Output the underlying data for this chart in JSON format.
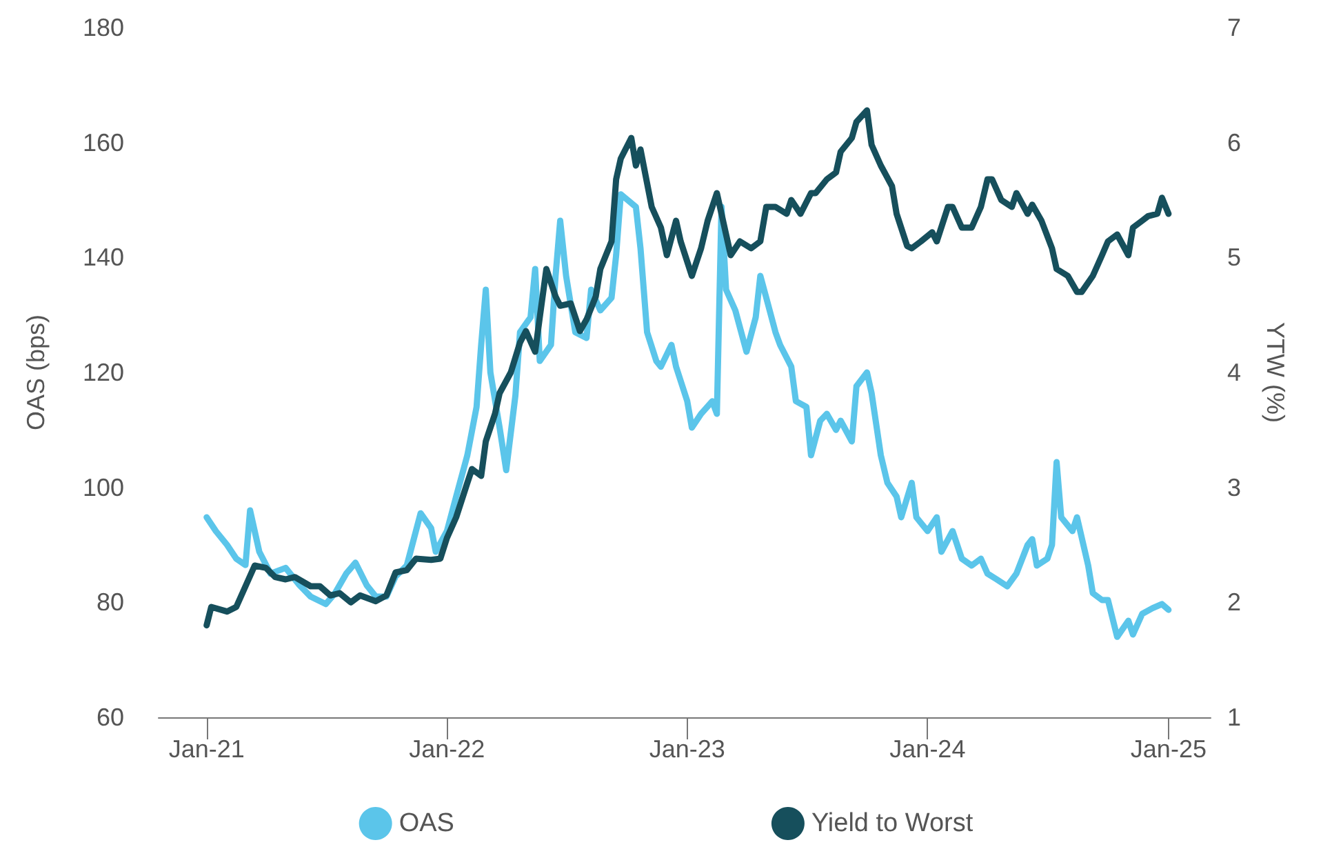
{
  "chart_data": {
    "type": "line",
    "ylabel": "OAS (bps)",
    "y2label": "YTW (%)",
    "xlim": [
      "2020-10-20",
      "2025-03-06"
    ],
    "xticks": [
      {
        "value": "2021-01-01",
        "label": "Jan-21"
      },
      {
        "value": "2022-01-01",
        "label": "Jan-22"
      },
      {
        "value": "2023-01-01",
        "label": "Jan-23"
      },
      {
        "value": "2024-01-01",
        "label": "Jan-24"
      },
      {
        "value": "2025-01-01",
        "label": "Jan-25"
      }
    ],
    "ylim": [
      60,
      180
    ],
    "yticks": [
      60,
      80,
      100,
      120,
      140,
      160,
      180
    ],
    "y2lim": [
      1,
      7
    ],
    "y2ticks": [
      1,
      2,
      3,
      4,
      5,
      6,
      7
    ],
    "grid": false,
    "legend": "bottom",
    "marker": "none",
    "line_style": "solid",
    "series": [
      {
        "name": "OAS",
        "color": "#5bc5ea",
        "x": [
          "2021-01-01",
          "2021-01-15",
          "2021-02-01",
          "2021-02-15",
          "2021-03-01",
          "2021-03-08",
          "2021-03-22",
          "2021-04-08",
          "2021-05-01",
          "2021-05-22",
          "2021-06-08",
          "2021-07-01",
          "2021-07-15",
          "2021-08-01",
          "2021-08-15",
          "2021-09-01",
          "2021-09-15",
          "2021-10-01",
          "2021-10-15",
          "2021-11-01",
          "2021-11-22",
          "2021-12-08",
          "2021-12-15",
          "2022-01-01",
          "2022-01-15",
          "2022-02-01",
          "2022-02-15",
          "2022-02-22",
          "2022-03-01",
          "2022-03-08",
          "2022-03-22",
          "2022-04-01",
          "2022-04-15",
          "2022-04-22",
          "2022-05-08",
          "2022-05-15",
          "2022-05-22",
          "2022-06-08",
          "2022-06-15",
          "2022-06-22",
          "2022-07-01",
          "2022-07-15",
          "2022-08-01",
          "2022-08-08",
          "2022-08-22",
          "2022-09-08",
          "2022-09-15",
          "2022-09-22",
          "2022-10-15",
          "2022-10-22",
          "2022-11-01",
          "2022-11-15",
          "2022-11-22",
          "2022-12-08",
          "2022-12-15",
          "2023-01-01",
          "2023-01-08",
          "2023-01-22",
          "2023-02-08",
          "2023-02-15",
          "2023-02-22",
          "2023-03-01",
          "2023-03-15",
          "2023-04-01",
          "2023-04-15",
          "2023-04-22",
          "2023-05-01",
          "2023-05-15",
          "2023-05-22",
          "2023-06-08",
          "2023-06-15",
          "2023-07-01",
          "2023-07-08",
          "2023-07-22",
          "2023-08-01",
          "2023-08-15",
          "2023-08-22",
          "2023-09-08",
          "2023-09-15",
          "2023-10-01",
          "2023-10-08",
          "2023-10-22",
          "2023-11-01",
          "2023-11-15",
          "2023-11-22",
          "2023-12-08",
          "2023-12-15",
          "2024-01-01",
          "2024-01-15",
          "2024-01-22",
          "2024-02-08",
          "2024-02-22",
          "2024-03-08",
          "2024-03-22",
          "2024-04-01",
          "2024-04-15",
          "2024-05-01",
          "2024-05-15",
          "2024-06-01",
          "2024-06-08",
          "2024-06-15",
          "2024-07-01",
          "2024-07-08",
          "2024-07-15",
          "2024-07-22",
          "2024-08-08",
          "2024-08-15",
          "2024-09-01",
          "2024-09-08",
          "2024-09-22",
          "2024-10-01",
          "2024-10-15",
          "2024-11-01",
          "2024-11-08",
          "2024-11-22",
          "2024-12-08",
          "2024-12-22",
          "2025-01-01"
        ],
        "values": [
          94.8,
          92.4,
          90,
          87.6,
          86.5,
          96,
          88.8,
          85,
          86,
          83,
          81,
          79.7,
          81.6,
          85,
          86.9,
          83,
          81,
          81,
          84.5,
          86.4,
          95.5,
          92.9,
          88.8,
          92.4,
          98.4,
          105.6,
          114,
          124.8,
          134.4,
          120,
          110.4,
          103,
          116,
          127,
          129.6,
          138,
          122,
          124.8,
          136.8,
          146.4,
          136.8,
          127,
          126,
          134.4,
          130.8,
          133,
          140.4,
          151,
          148.8,
          141.6,
          127,
          122,
          121,
          124.8,
          121,
          115,
          110.4,
          112.8,
          115,
          112.8,
          148.8,
          134.4,
          130.8,
          123.6,
          129.6,
          136.8,
          133,
          127,
          124.8,
          121,
          115,
          114,
          105.6,
          111.6,
          112.8,
          110,
          111.6,
          108,
          117.6,
          120,
          116.4,
          105.6,
          100.8,
          98.4,
          94.8,
          100.8,
          94.8,
          92.4,
          94.8,
          88.8,
          92.4,
          87.6,
          86.4,
          87.6,
          85,
          84,
          82.8,
          85,
          90,
          91,
          86.4,
          87.6,
          90,
          104.4,
          94.8,
          92.4,
          94.8,
          86.4,
          81.6,
          80.4,
          80.4,
          74,
          76.8,
          74.4,
          78,
          79,
          79.7,
          78.7
        ]
      },
      {
        "name": "Yield to Worst",
        "color": "#164f5c",
        "axis": "y2",
        "x": [
          "2021-01-01",
          "2021-01-08",
          "2021-02-01",
          "2021-02-15",
          "2021-03-01",
          "2021-03-15",
          "2021-04-01",
          "2021-04-15",
          "2021-05-01",
          "2021-05-15",
          "2021-06-08",
          "2021-06-22",
          "2021-07-08",
          "2021-07-22",
          "2021-08-08",
          "2021-08-22",
          "2021-09-15",
          "2021-10-01",
          "2021-10-15",
          "2021-11-01",
          "2021-11-15",
          "2021-12-08",
          "2021-12-22",
          "2022-01-01",
          "2022-01-15",
          "2022-02-01",
          "2022-02-08",
          "2022-02-22",
          "2022-03-01",
          "2022-03-15",
          "2022-03-22",
          "2022-04-08",
          "2022-04-22",
          "2022-05-01",
          "2022-05-15",
          "2022-05-22",
          "2022-06-01",
          "2022-06-15",
          "2022-06-22",
          "2022-07-08",
          "2022-07-22",
          "2022-08-01",
          "2022-08-15",
          "2022-08-22",
          "2022-09-08",
          "2022-09-15",
          "2022-09-22",
          "2022-10-08",
          "2022-10-15",
          "2022-10-22",
          "2022-11-08",
          "2022-11-22",
          "2022-12-01",
          "2022-12-15",
          "2022-12-22",
          "2023-01-08",
          "2023-01-22",
          "2023-02-01",
          "2023-02-15",
          "2023-03-01",
          "2023-03-08",
          "2023-03-22",
          "2023-04-08",
          "2023-04-22",
          "2023-05-01",
          "2023-05-15",
          "2023-06-01",
          "2023-06-08",
          "2023-06-22",
          "2023-07-08",
          "2023-07-15",
          "2023-08-01",
          "2023-08-15",
          "2023-08-22",
          "2023-09-08",
          "2023-09-15",
          "2023-10-01",
          "2023-10-08",
          "2023-10-22",
          "2023-11-08",
          "2023-11-15",
          "2023-12-01",
          "2023-12-08",
          "2023-12-22",
          "2024-01-08",
          "2024-01-15",
          "2024-02-01",
          "2024-02-08",
          "2024-02-22",
          "2024-03-08",
          "2024-03-22",
          "2024-04-01",
          "2024-04-08",
          "2024-04-22",
          "2024-05-08",
          "2024-05-15",
          "2024-06-01",
          "2024-06-08",
          "2024-06-22",
          "2024-07-08",
          "2024-07-15",
          "2024-08-01",
          "2024-08-15",
          "2024-08-22",
          "2024-09-08",
          "2024-09-22",
          "2024-10-01",
          "2024-10-15",
          "2024-11-01",
          "2024-11-08",
          "2024-11-22",
          "2024-12-01",
          "2024-12-15",
          "2024-12-22",
          "2025-01-01"
        ],
        "values": [
          1.8,
          1.96,
          1.92,
          1.96,
          2.14,
          2.32,
          2.3,
          2.22,
          2.2,
          2.22,
          2.14,
          2.14,
          2.06,
          2.08,
          2,
          2.06,
          2.01,
          2.06,
          2.26,
          2.28,
          2.38,
          2.37,
          2.38,
          2.56,
          2.74,
          3.04,
          3.16,
          3.1,
          3.4,
          3.64,
          3.82,
          4,
          4.26,
          4.36,
          4.18,
          4.48,
          4.9,
          4.66,
          4.58,
          4.6,
          4.36,
          4.46,
          4.66,
          4.9,
          5.14,
          5.68,
          5.86,
          6.04,
          5.8,
          5.94,
          5.44,
          5.26,
          5.02,
          5.32,
          5.14,
          4.84,
          5.08,
          5.32,
          5.56,
          5.2,
          5.02,
          5.14,
          5.08,
          5.14,
          5.44,
          5.44,
          5.38,
          5.5,
          5.38,
          5.56,
          5.56,
          5.68,
          5.74,
          5.92,
          6.04,
          6.18,
          6.28,
          5.98,
          5.8,
          5.62,
          5.38,
          5.1,
          5.08,
          5.14,
          5.22,
          5.14,
          5.44,
          5.44,
          5.26,
          5.26,
          5.44,
          5.68,
          5.68,
          5.5,
          5.44,
          5.56,
          5.38,
          5.46,
          5.32,
          5.08,
          4.9,
          4.84,
          4.7,
          4.7,
          4.84,
          5.02,
          5.14,
          5.2,
          5.02,
          5.26,
          5.32,
          5.36,
          5.38,
          5.52,
          5.38
        ]
      }
    ]
  }
}
